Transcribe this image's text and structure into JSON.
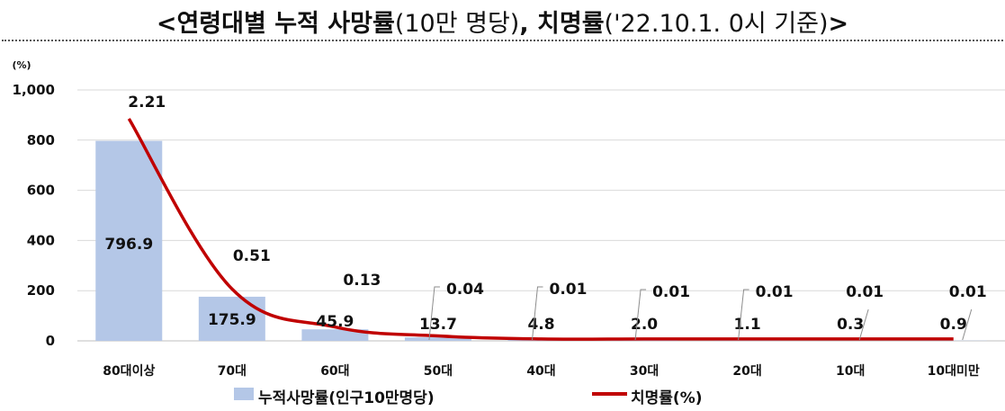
{
  "title": {
    "open": "<",
    "main": "연령대별 누적 사망률",
    "sub1": "(10만 명당)",
    "comma": ", ",
    "main2": "치명률",
    "sub2": "('22.10.1. 0시 기준)",
    "close": ">"
  },
  "chart_data": {
    "type": "bar",
    "categories": [
      "80대이상",
      "70대",
      "60대",
      "50대",
      "40대",
      "30대",
      "20대",
      "10대",
      "10대미만"
    ],
    "series": [
      {
        "name": "누적사망률(인구10만명당)",
        "type": "bar",
        "values": [
          796.9,
          175.9,
          45.9,
          13.7,
          4.8,
          2.0,
          1.1,
          0.3,
          0.9
        ],
        "labels": [
          "796.9",
          "175.9",
          "45.9",
          "13.7",
          "4.8",
          "2.0",
          "1.1",
          "0.3",
          "0.9"
        ],
        "color": "#b4c7e7"
      },
      {
        "name": "치명률(%)",
        "type": "line",
        "values": [
          2.21,
          0.51,
          0.13,
          0.04,
          0.01,
          0.01,
          0.01,
          0.01,
          0.01
        ],
        "labels": [
          "2.21",
          "0.51",
          "0.13",
          "0.04",
          "0.01",
          "0.01",
          "0.01",
          "0.01",
          "0.01"
        ],
        "color": "#c00000"
      }
    ],
    "y_axis": {
      "unit": "(%)",
      "ylim": [
        0,
        1000
      ],
      "ticks": [
        0,
        200,
        400,
        600,
        800,
        1000
      ],
      "tick_labels": [
        "0",
        "200",
        "400",
        "600",
        "800",
        "1,000"
      ]
    },
    "grid": true,
    "legend": "bottom"
  }
}
